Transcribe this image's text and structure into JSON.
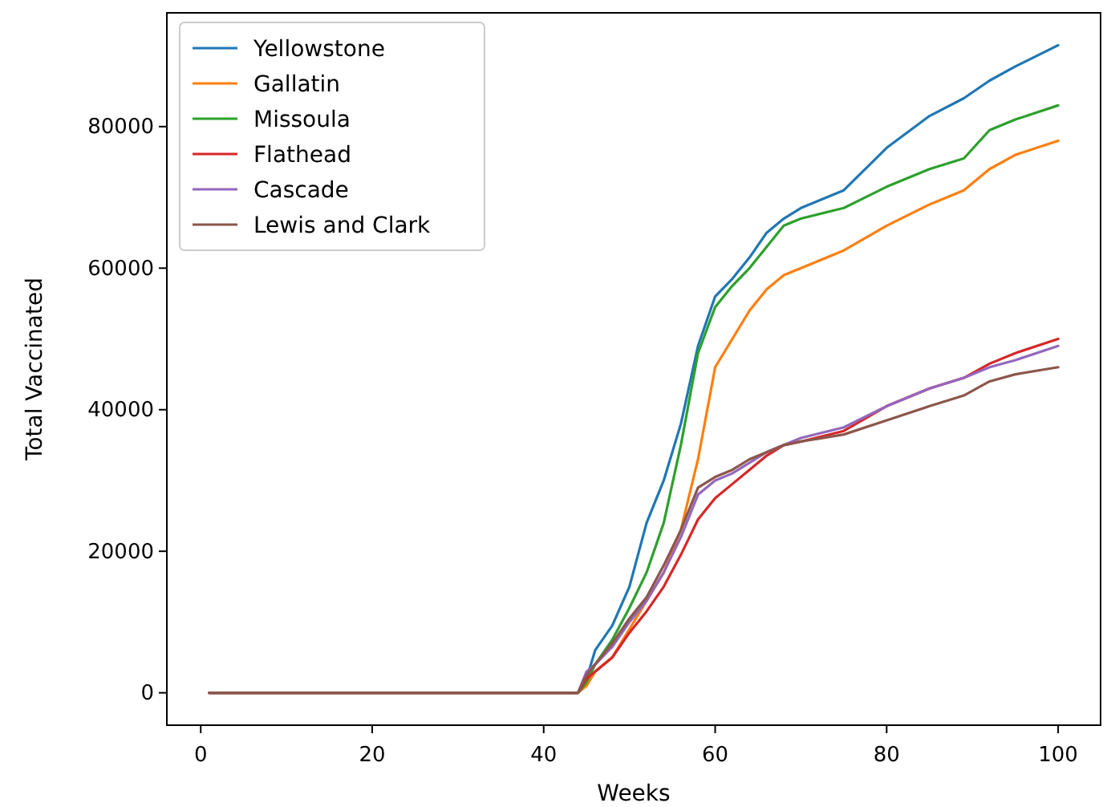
{
  "chart_data": {
    "type": "line",
    "xlabel": "Weeks",
    "ylabel": "Total Vaccinated",
    "x": [
      1,
      44,
      45,
      46,
      48,
      50,
      52,
      54,
      56,
      58,
      60,
      62,
      64,
      66,
      68,
      70,
      75,
      80,
      85,
      89,
      92,
      95,
      100
    ],
    "xlim": [
      -3.95,
      104.95
    ],
    "xticks": [
      0,
      20,
      40,
      60,
      80,
      100
    ],
    "ylim": [
      -4575,
      96075
    ],
    "yticks": [
      0,
      20000,
      40000,
      60000,
      80000
    ],
    "grid": false,
    "legend": "top left",
    "marker": "none",
    "line_style": "solid",
    "series": [
      {
        "name": "Yellowstone",
        "color": "#1f77b4",
        "values": [
          0,
          0,
          2000,
          6000,
          9500,
          15000,
          24000,
          30000,
          38000,
          49000,
          56000,
          58500,
          61500,
          65000,
          67000,
          68500,
          71000,
          77000,
          81500,
          84000,
          86500,
          88500,
          91500
        ]
      },
      {
        "name": "Gallatin",
        "color": "#ff7f0e",
        "values": [
          0,
          0,
          1000,
          3000,
          5000,
          9000,
          13000,
          17000,
          23000,
          33000,
          46000,
          50000,
          54000,
          57000,
          59000,
          60000,
          62500,
          66000,
          69000,
          71000,
          74000,
          76000,
          78000
        ]
      },
      {
        "name": "Missoula",
        "color": "#2ca02c",
        "values": [
          0,
          0,
          1500,
          4000,
          7500,
          12000,
          17000,
          24000,
          35000,
          48000,
          54500,
          57500,
          60000,
          63000,
          66000,
          67000,
          68500,
          71500,
          74000,
          75500,
          79500,
          81000,
          83000
        ]
      },
      {
        "name": "Flathead",
        "color": "#d62728",
        "values": [
          0,
          0,
          2000,
          3000,
          5000,
          8500,
          11500,
          15000,
          19500,
          24500,
          27500,
          29500,
          31500,
          33500,
          35000,
          35500,
          37000,
          40500,
          43000,
          44500,
          46500,
          48000,
          50000
        ]
      },
      {
        "name": "Cascade",
        "color": "#9467bd",
        "values": [
          0,
          0,
          3000,
          4000,
          6500,
          10000,
          13000,
          17000,
          22000,
          28000,
          30000,
          31000,
          32500,
          34000,
          35000,
          36000,
          37500,
          40500,
          43000,
          44500,
          46000,
          47000,
          49000
        ]
      },
      {
        "name": "Lewis and Clark",
        "color": "#8c564b",
        "values": [
          0,
          0,
          2500,
          4000,
          7000,
          10500,
          13500,
          18000,
          23000,
          29000,
          30500,
          31500,
          33000,
          34000,
          35000,
          35500,
          36500,
          38500,
          40500,
          42000,
          44000,
          45000,
          46000
        ]
      }
    ]
  }
}
